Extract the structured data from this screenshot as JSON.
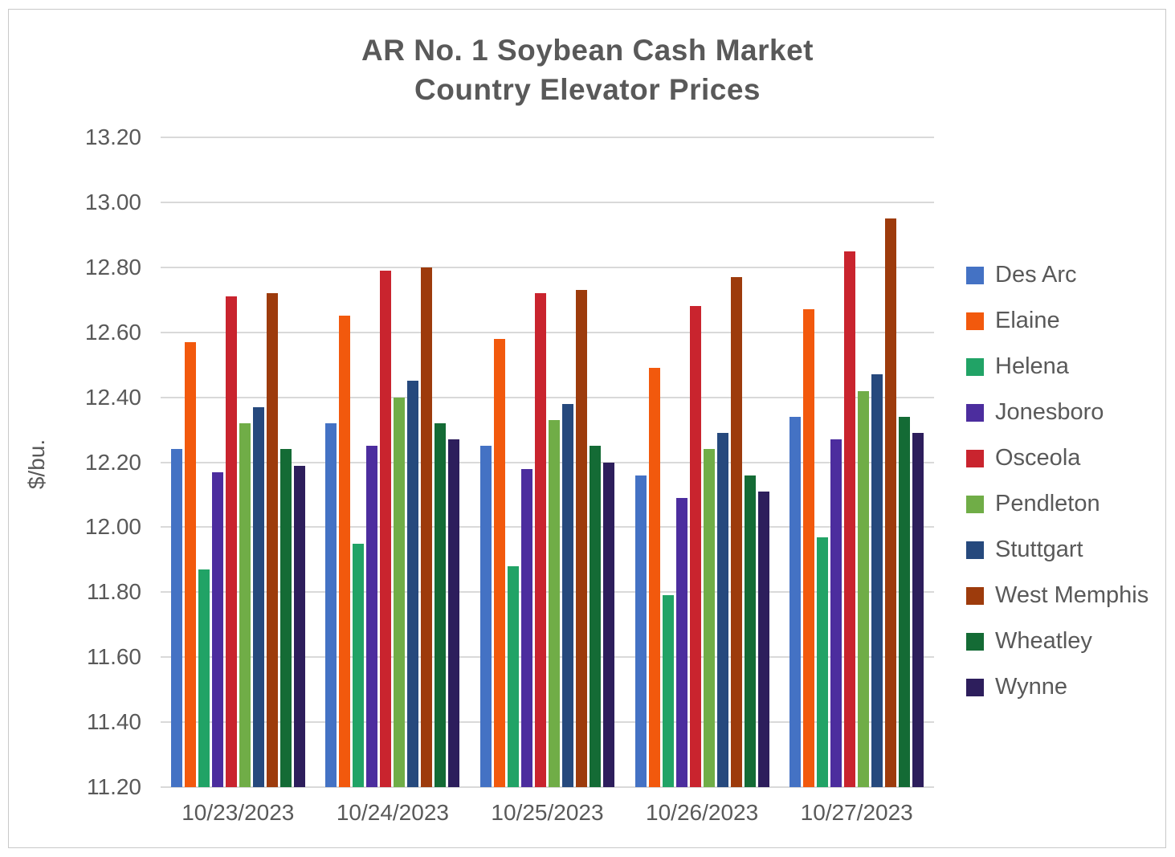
{
  "chart_data": {
    "type": "bar",
    "title": "AR No. 1 Soybean Cash Market",
    "subtitle": "Country Elevator Prices",
    "ylabel": "$/bu.",
    "categories": [
      "10/23/2023",
      "10/24/2023",
      "10/25/2023",
      "10/26/2023",
      "10/27/2023"
    ],
    "series": [
      {
        "name": "Des Arc",
        "color": "#4472C4",
        "values": [
          12.24,
          12.32,
          12.25,
          12.16,
          12.34
        ]
      },
      {
        "name": "Elaine",
        "color": "#F2590D",
        "values": [
          12.57,
          12.65,
          12.58,
          12.49,
          12.67
        ]
      },
      {
        "name": "Helena",
        "color": "#21A366",
        "values": [
          11.87,
          11.95,
          11.88,
          11.79,
          11.97
        ]
      },
      {
        "name": "Jonesboro",
        "color": "#4C2D9E",
        "values": [
          12.17,
          12.25,
          12.18,
          12.09,
          12.27
        ]
      },
      {
        "name": "Osceola",
        "color": "#C9242E",
        "values": [
          12.71,
          12.79,
          12.72,
          12.68,
          12.85
        ]
      },
      {
        "name": "Pendleton",
        "color": "#70AD47",
        "values": [
          12.32,
          12.4,
          12.33,
          12.24,
          12.42
        ]
      },
      {
        "name": "Stuttgart",
        "color": "#26497D",
        "values": [
          12.37,
          12.45,
          12.38,
          12.29,
          12.47
        ]
      },
      {
        "name": "West Memphis",
        "color": "#9D3B0C",
        "values": [
          12.72,
          12.8,
          12.73,
          12.77,
          12.95
        ]
      },
      {
        "name": "Wheatley",
        "color": "#146B35",
        "values": [
          12.24,
          12.32,
          12.25,
          12.16,
          12.34
        ]
      },
      {
        "name": "Wynne",
        "color": "#2D1E5C",
        "values": [
          12.19,
          12.27,
          12.2,
          12.11,
          12.29
        ]
      }
    ],
    "ylim": [
      11.2,
      13.2
    ],
    "ytick_step": 0.2,
    "yticks": [
      "13.20",
      "13.00",
      "12.80",
      "12.60",
      "12.40",
      "12.20",
      "12.00",
      "11.80",
      "11.60",
      "11.40",
      "11.20"
    ],
    "grid": "horizontal",
    "legend_position": "right",
    "text_color": "#595959",
    "gridline_color": "#D9D9D9"
  }
}
